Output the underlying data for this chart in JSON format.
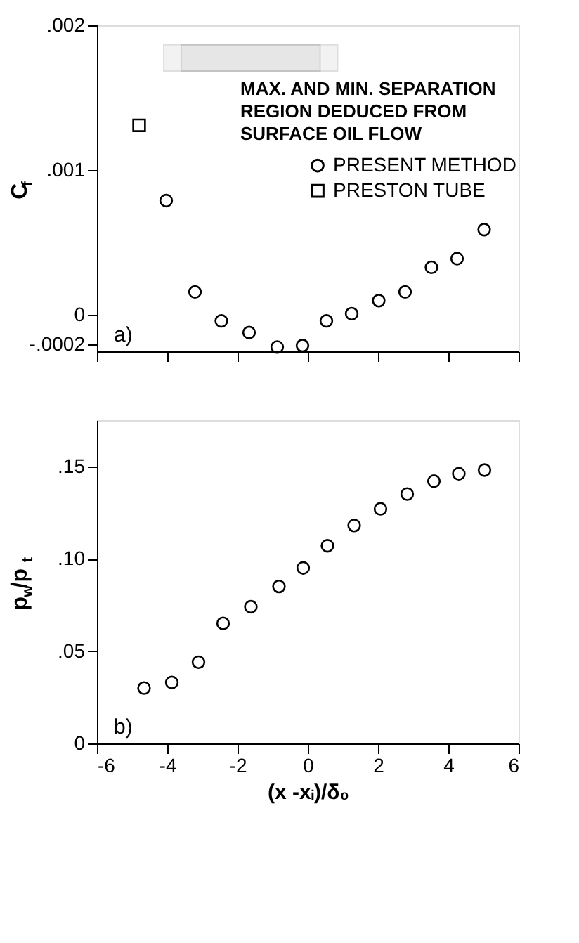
{
  "chart_data": [
    {
      "type": "scatter",
      "ylabel": "C$_{f}$",
      "xlim": [
        -6,
        6
      ],
      "xticks": [
        {
          "value": -6,
          "label": null
        },
        {
          "value": -4,
          "label": null
        },
        {
          "value": -2,
          "label": null
        },
        {
          "value": 0,
          "label": null
        },
        {
          "value": 2,
          "label": null
        },
        {
          "value": 4,
          "label": null
        },
        {
          "value": 6,
          "label": null
        }
      ],
      "ylim": [
        -0.00025,
        0.002
      ],
      "yticks": [
        {
          "value": -0.0002,
          "label": "-.0002"
        },
        {
          "value": 0,
          "label": "0"
        },
        {
          "value": 0.001,
          "label": ".001"
        },
        {
          "value": 0.002,
          "label": ".002"
        }
      ],
      "tick_labels": "y",
      "grid": false,
      "legend": "top right",
      "series": [
        {
          "name": "PRESENT METHOD",
          "color": "#000000",
          "marker": "circle",
          "x": [
            -4.03,
            -3.21,
            -2.46,
            -1.67,
            -0.87,
            -0.15,
            0.53,
            1.25,
            2.02,
            2.77,
            3.52,
            4.25,
            5.02
          ],
          "values": [
            0.00079,
            0.00016,
            -4e-05,
            -0.00012,
            -0.00022,
            -0.00021,
            -4e-05,
            1e-05,
            0.0001,
            0.00016,
            0.00033,
            0.00039,
            0.00059
          ]
        },
        {
          "name": "PRESTON TUBE",
          "color": "#000000",
          "marker": "square",
          "x": [
            -4.8
          ],
          "values": [
            0.00131
          ]
        }
      ],
      "bands": [
        {
          "axis": "x",
          "from": -4.1,
          "to": 0.85
        },
        {
          "axis": "x",
          "from": -3.6,
          "to": 0.35
        }
      ],
      "annotations": [
        "MAX. AND MIN. SEPARATION\nREGION DEDUCED FROM\nSURFACE OIL FLOW",
        "a)"
      ]
    },
    {
      "type": "scatter",
      "xlabel": "(x -xᵢ)/δ₀",
      "ylabel": "p$_{w}$/p$_{t}$",
      "xlim": [
        -6,
        6
      ],
      "xticks": [
        -6,
        -4,
        -2,
        0,
        2,
        4,
        6
      ],
      "ylim": [
        0,
        0.175
      ],
      "yticks": [
        {
          "value": 0,
          "label": "0"
        },
        {
          "value": 0.05,
          "label": ".05"
        },
        {
          "value": 0.1,
          "label": ".10"
        },
        {
          "value": 0.15,
          "label": ".15"
        }
      ],
      "grid": false,
      "series": [
        {
          "color": "#000000",
          "marker": "circle",
          "x": [
            -4.66,
            -3.87,
            -3.11,
            -2.41,
            -1.62,
            -0.82,
            -0.13,
            0.56,
            1.32,
            2.07,
            2.83,
            3.59,
            4.3,
            5.03
          ],
          "values": [
            0.03,
            0.033,
            0.044,
            0.065,
            0.074,
            0.085,
            0.095,
            0.107,
            0.118,
            0.127,
            0.135,
            0.142,
            0.146,
            0.148
          ]
        }
      ],
      "annotations": [
        "b)"
      ]
    }
  ]
}
